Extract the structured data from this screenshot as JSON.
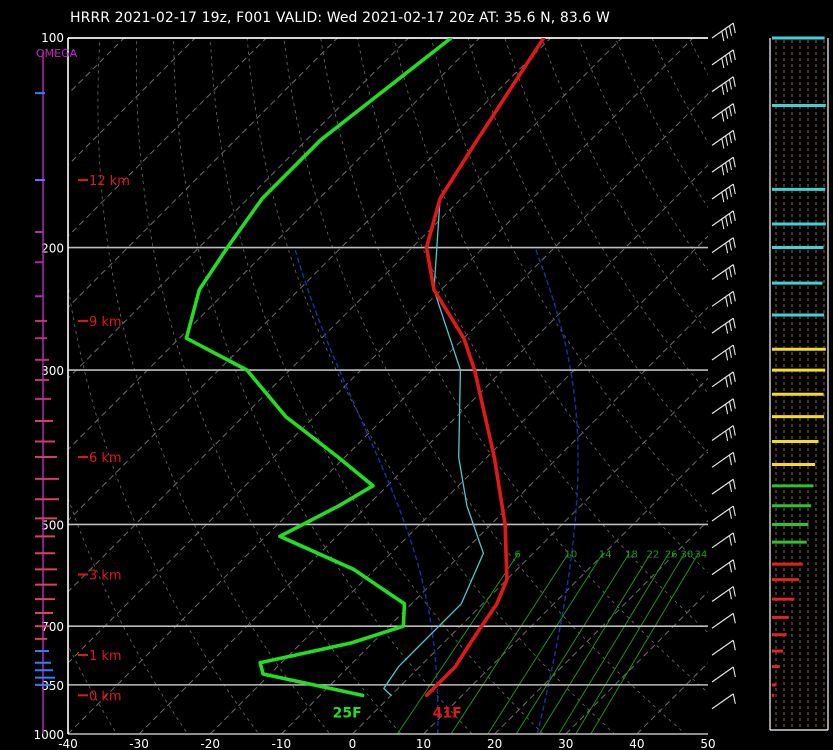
{
  "header": {
    "title": "HRRR 2021-02-17 19z, F001  VALID: Wed 2021-02-17 20z  AT: 35.6 N, 83.6 W"
  },
  "chart_data": {
    "type": "skew-t",
    "pressure_levels": [
      100,
      200,
      300,
      500,
      700,
      850,
      1000
    ],
    "temperature_ticks": [
      -40,
      -30,
      -20,
      -10,
      0,
      10,
      20,
      30,
      40,
      50
    ],
    "xlim": [
      -40,
      50
    ],
    "ylim": [
      1000,
      100
    ],
    "omega_label": "OMEGA",
    "height_labels": [
      {
        "text": "12 km",
        "p": 160
      },
      {
        "text": "9 km",
        "p": 255
      },
      {
        "text": "6 km",
        "p": 400
      },
      {
        "text": "3 km",
        "p": 590
      },
      {
        "text": "1 km",
        "p": 770
      },
      {
        "text": "0 km",
        "p": 880
      }
    ],
    "mixing_ratio_labels": [
      "6",
      "10",
      "14",
      "18",
      "22",
      "26",
      "30",
      "34"
    ],
    "surface_dewpoint_label": "25F",
    "surface_temperature_label": "41F",
    "temperature": [
      {
        "p": 100,
        "t": -71
      },
      {
        "p": 140,
        "t": -66
      },
      {
        "p": 170,
        "t": -63
      },
      {
        "p": 200,
        "t": -58
      },
      {
        "p": 230,
        "t": -51
      },
      {
        "p": 270,
        "t": -40
      },
      {
        "p": 300,
        "t": -34
      },
      {
        "p": 400,
        "t": -19
      },
      {
        "p": 500,
        "t": -8
      },
      {
        "p": 600,
        "t": 0
      },
      {
        "p": 650,
        "t": 2
      },
      {
        "p": 700,
        "t": 3
      },
      {
        "p": 750,
        "t": 4
      },
      {
        "p": 800,
        "t": 5
      },
      {
        "p": 850,
        "t": 5
      },
      {
        "p": 880,
        "t": 5
      }
    ],
    "dewpoint": [
      {
        "p": 100,
        "t": -84
      },
      {
        "p": 140,
        "t": -88
      },
      {
        "p": 170,
        "t": -88
      },
      {
        "p": 200,
        "t": -86
      },
      {
        "p": 230,
        "t": -84
      },
      {
        "p": 270,
        "t": -79
      },
      {
        "p": 300,
        "t": -66
      },
      {
        "p": 350,
        "t": -54
      },
      {
        "p": 400,
        "t": -41
      },
      {
        "p": 440,
        "t": -32
      },
      {
        "p": 470,
        "t": -34
      },
      {
        "p": 520,
        "t": -38
      },
      {
        "p": 580,
        "t": -23
      },
      {
        "p": 650,
        "t": -11
      },
      {
        "p": 700,
        "t": -8
      },
      {
        "p": 740,
        "t": -13
      },
      {
        "p": 790,
        "t": -23
      },
      {
        "p": 820,
        "t": -21
      },
      {
        "p": 880,
        "t": -4
      }
    ],
    "virtual_temperature": [
      {
        "p": 100,
        "t": -71
      },
      {
        "p": 170,
        "t": -63
      },
      {
        "p": 230,
        "t": -51
      },
      {
        "p": 300,
        "t": -36
      },
      {
        "p": 400,
        "t": -24
      },
      {
        "p": 470,
        "t": -16
      },
      {
        "p": 550,
        "t": -7
      },
      {
        "p": 650,
        "t": -3
      },
      {
        "p": 750,
        "t": -3
      },
      {
        "p": 800,
        "t": -3
      },
      {
        "p": 860,
        "t": -2
      },
      {
        "p": 880,
        "t": 0
      }
    ],
    "colors": {
      "temperature": "#e01818",
      "dewpoint": "#22dd22",
      "virtual_temperature": "#4cc8d0",
      "isobar": "#bdbdbd",
      "isotherm": "#6e6e6e",
      "dry_adiabat": "#6e6e6e",
      "moist_adiabat": "#1b2fa8",
      "mixing_ratio": "#1c9e1c",
      "height_label": "#e01818",
      "omega_label": "#cc22cc",
      "omega_axis": "#b02ab0",
      "barb": "#e6e6e6"
    },
    "wind_barbs_count": 26,
    "wind_profile_bars": [
      {
        "p": 100,
        "color": "#3fd0d8",
        "length": 0.94
      },
      {
        "p": 125,
        "color": "#3fd0d8",
        "length": 0.96
      },
      {
        "p": 165,
        "color": "#3fd0d8",
        "length": 0.95
      },
      {
        "p": 185,
        "color": "#3fd0d8",
        "length": 0.96
      },
      {
        "p": 200,
        "color": "#3fd0d8",
        "length": 0.92
      },
      {
        "p": 225,
        "color": "#3fd0d8",
        "length": 0.9
      },
      {
        "p": 250,
        "color": "#3fd0d8",
        "length": 0.93
      },
      {
        "p": 280,
        "color": "#f2dc24",
        "length": 0.96
      },
      {
        "p": 300,
        "color": "#f2dc24",
        "length": 0.95
      },
      {
        "p": 325,
        "color": "#f2dc24",
        "length": 0.92
      },
      {
        "p": 350,
        "color": "#f2dc24",
        "length": 0.93
      },
      {
        "p": 380,
        "color": "#f2dc24",
        "length": 0.83
      },
      {
        "p": 410,
        "color": "#f2dc24",
        "length": 0.77
      },
      {
        "p": 440,
        "color": "#2fc22f",
        "length": 0.74
      },
      {
        "p": 470,
        "color": "#2fc22f",
        "length": 0.7
      },
      {
        "p": 500,
        "color": "#2fc22f",
        "length": 0.65
      },
      {
        "p": 530,
        "color": "#2fc22f",
        "length": 0.62
      },
      {
        "p": 570,
        "color": "#e02222",
        "length": 0.55
      },
      {
        "p": 600,
        "color": "#e02222",
        "length": 0.48
      },
      {
        "p": 640,
        "color": "#e02222",
        "length": 0.4
      },
      {
        "p": 680,
        "color": "#e02222",
        "length": 0.3
      },
      {
        "p": 720,
        "color": "#e02222",
        "length": 0.26
      },
      {
        "p": 760,
        "color": "#e02222",
        "length": 0.2
      },
      {
        "p": 800,
        "color": "#e02222",
        "length": 0.14
      },
      {
        "p": 850,
        "color": "#e02222",
        "length": 0.08
      },
      {
        "p": 880,
        "color": "#e02222",
        "length": 0.04
      }
    ],
    "omega_ticks": [
      {
        "p": 120,
        "color": "#2e7fff",
        "length": 0.3
      },
      {
        "p": 160,
        "color": "#7a6bff",
        "length": 0.3
      },
      {
        "p": 190,
        "color": "#b02ab0",
        "length": 0.2
      },
      {
        "p": 210,
        "color": "#b02ab0",
        "length": 0.2
      },
      {
        "p": 235,
        "color": "#b02ab0",
        "length": 0.2
      },
      {
        "p": 255,
        "color": "#c2307a",
        "length": 0.4
      },
      {
        "p": 270,
        "color": "#c2307a",
        "length": 0.4
      },
      {
        "p": 290,
        "color": "#c2307a",
        "length": 0.5
      },
      {
        "p": 310,
        "color": "#c2307a",
        "length": 0.5
      },
      {
        "p": 330,
        "color": "#c2307a",
        "length": 0.6
      },
      {
        "p": 355,
        "color": "#d83a6a",
        "length": 0.7
      },
      {
        "p": 380,
        "color": "#d83a6a",
        "length": 0.8
      },
      {
        "p": 400,
        "color": "#d83a6a",
        "length": 0.9
      },
      {
        "p": 430,
        "color": "#d83a6a",
        "length": 1.0
      },
      {
        "p": 460,
        "color": "#e0405a",
        "length": 1.0
      },
      {
        "p": 490,
        "color": "#e0405a",
        "length": 0.9
      },
      {
        "p": 520,
        "color": "#e0405a",
        "length": 0.8
      },
      {
        "p": 550,
        "color": "#e0405a",
        "length": 0.8
      },
      {
        "p": 580,
        "color": "#e0405a",
        "length": 0.9
      },
      {
        "p": 610,
        "color": "#e0405a",
        "length": 0.9
      },
      {
        "p": 640,
        "color": "#e0405a",
        "length": 0.8
      },
      {
        "p": 670,
        "color": "#e0405a",
        "length": 0.7
      },
      {
        "p": 700,
        "color": "#e0405a",
        "length": 0.5
      },
      {
        "p": 730,
        "color": "#e0405a",
        "length": 0.4
      },
      {
        "p": 760,
        "color": "#2e7fff",
        "length": 0.5
      },
      {
        "p": 790,
        "color": "#2e7fff",
        "length": 0.6
      },
      {
        "p": 810,
        "color": "#2e7fff",
        "length": 0.7
      },
      {
        "p": 830,
        "color": "#2e7fff",
        "length": 0.8
      },
      {
        "p": 850,
        "color": "#2e7fff",
        "length": 0.6
      }
    ]
  }
}
